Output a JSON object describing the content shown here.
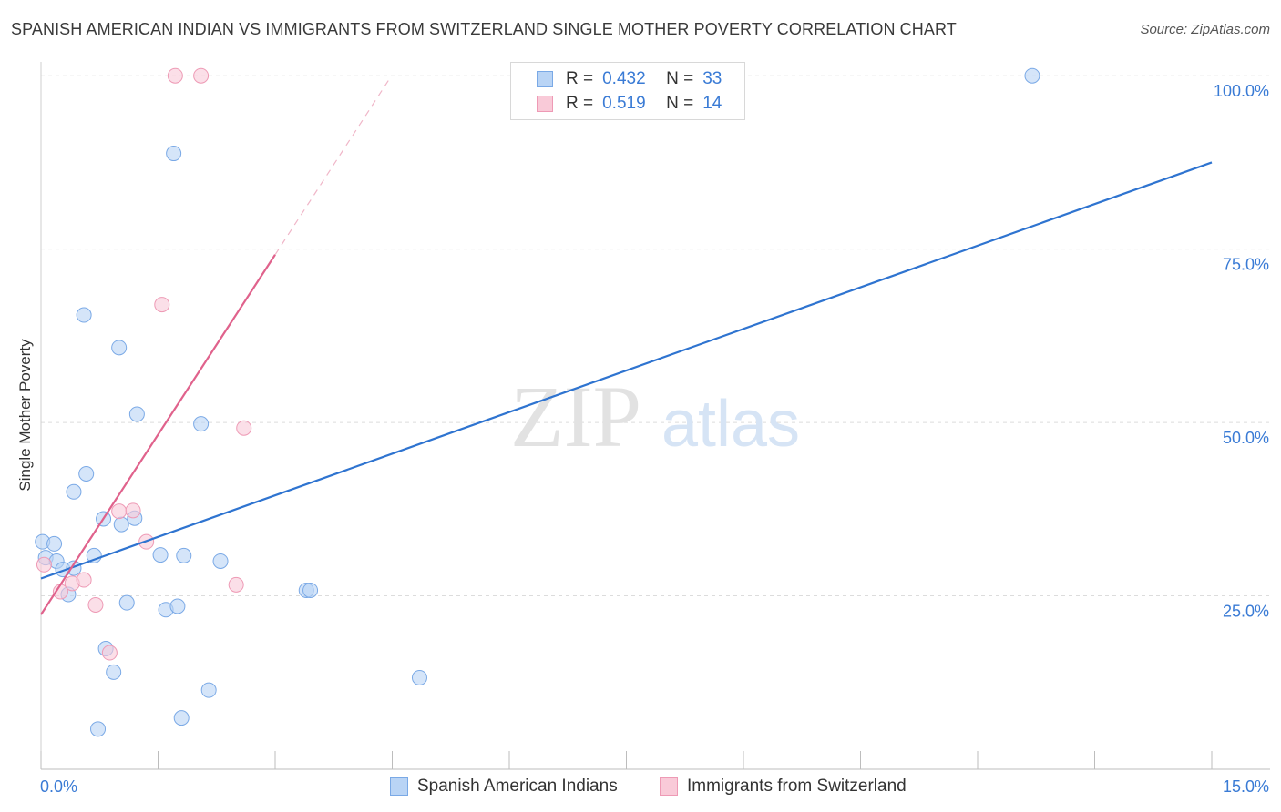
{
  "title": "SPANISH AMERICAN INDIAN VS IMMIGRANTS FROM SWITZERLAND SINGLE MOTHER POVERTY CORRELATION CHART",
  "source": "Source: ZipAtlas.com",
  "watermark": {
    "zip": "ZIP",
    "atlas": "atlas"
  },
  "colors": {
    "blue_fill": "#b9d4f5",
    "blue_stroke": "#7aa9e6",
    "blue_line": "#2f74d0",
    "pink_fill": "#f9cad8",
    "pink_stroke": "#ee9ab5",
    "pink_line": "#e0628c",
    "tick_label": "#3a7bd5",
    "grid": "#dcdcdc"
  },
  "legend": {
    "rows": [
      {
        "r_label": "R =",
        "r_value": "0.432",
        "n_label": "N =",
        "n_value": "33"
      },
      {
        "r_label": "R =",
        "r_value": "0.519",
        "n_label": "N =",
        "n_value": "14"
      }
    ]
  },
  "bottom_legend": {
    "series1": "Spanish American Indians",
    "series2": "Immigrants from Switzerland"
  },
  "chart_data": {
    "type": "scatter",
    "title": "SPANISH AMERICAN INDIAN VS IMMIGRANTS FROM SWITZERLAND SINGLE MOTHER POVERTY CORRELATION CHART",
    "xlabel": "",
    "ylabel": "Single Mother Poverty",
    "xlim": [
      0,
      15
    ],
    "ylim": [
      0,
      102
    ],
    "x_tick_labels": [
      "0.0%",
      "15.0%"
    ],
    "y_ticks": [
      25,
      50,
      75,
      100
    ],
    "y_tick_labels": [
      "25.0%",
      "50.0%",
      "75.0%",
      "100.0%"
    ],
    "grid": true,
    "series": [
      {
        "name": "Spanish American Indians",
        "r": 0.432,
        "n": 33,
        "trend": {
          "x": [
            0,
            15
          ],
          "y": [
            27.5,
            87.5
          ]
        },
        "points": [
          [
            0.02,
            32.8
          ],
          [
            0.06,
            30.5
          ],
          [
            0.17,
            32.5
          ],
          [
            0.2,
            30.0
          ],
          [
            0.28,
            28.8
          ],
          [
            0.35,
            25.2
          ],
          [
            0.42,
            29.0
          ],
          [
            0.42,
            40.0
          ],
          [
            0.58,
            42.6
          ],
          [
            0.55,
            65.5
          ],
          [
            0.68,
            30.8
          ],
          [
            0.73,
            5.8
          ],
          [
            0.8,
            36.1
          ],
          [
            0.83,
            17.4
          ],
          [
            0.93,
            14.0
          ],
          [
            1.0,
            60.8
          ],
          [
            1.03,
            35.3
          ],
          [
            1.1,
            24.0
          ],
          [
            1.2,
            36.2
          ],
          [
            1.23,
            51.2
          ],
          [
            1.53,
            30.9
          ],
          [
            1.6,
            23.0
          ],
          [
            1.7,
            88.8
          ],
          [
            1.75,
            23.5
          ],
          [
            1.8,
            7.4
          ],
          [
            1.83,
            30.8
          ],
          [
            2.05,
            49.8
          ],
          [
            2.15,
            11.4
          ],
          [
            2.3,
            30.0
          ],
          [
            3.4,
            25.8
          ],
          [
            3.45,
            25.8
          ],
          [
            4.85,
            13.2
          ],
          [
            12.7,
            100.0
          ]
        ]
      },
      {
        "name": "Immigrants from Switzerland",
        "r": 0.519,
        "n": 14,
        "trend": {
          "x": [
            0,
            3.0
          ],
          "y": [
            22.3,
            74.2
          ]
        },
        "trend_dashed": {
          "x": [
            3.0,
            4.45
          ],
          "y": [
            74.2,
            99.3
          ]
        },
        "points": [
          [
            0.04,
            29.5
          ],
          [
            0.25,
            25.6
          ],
          [
            0.4,
            26.8
          ],
          [
            0.55,
            27.3
          ],
          [
            0.7,
            23.7
          ],
          [
            0.88,
            16.8
          ],
          [
            1.0,
            37.2
          ],
          [
            1.18,
            37.3
          ],
          [
            1.35,
            32.8
          ],
          [
            1.55,
            67.0
          ],
          [
            1.72,
            100.0
          ],
          [
            2.05,
            100.0
          ],
          [
            2.5,
            26.6
          ],
          [
            2.6,
            49.2
          ]
        ]
      }
    ]
  }
}
